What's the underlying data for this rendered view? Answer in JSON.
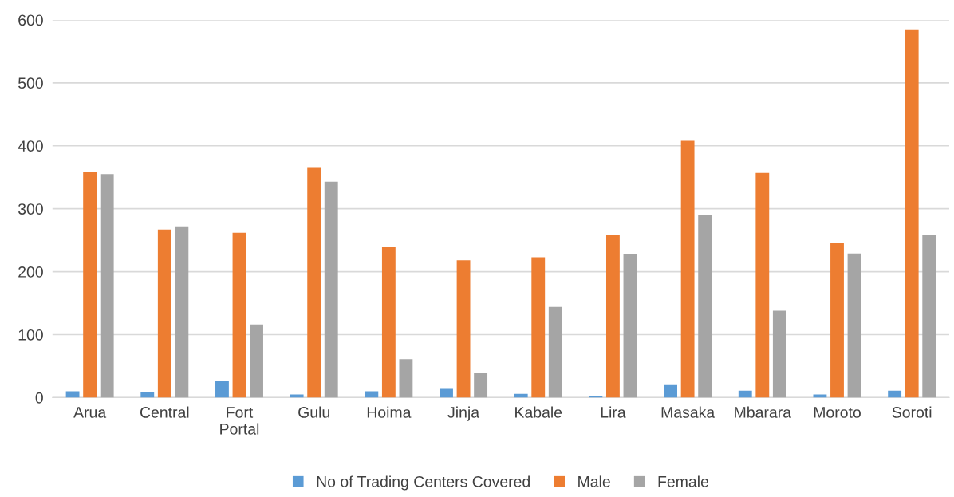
{
  "chart_data": {
    "type": "bar",
    "categories": [
      "Arua",
      "Central",
      "Fort\nPortal",
      "Gulu",
      "Hoima",
      "Jinja",
      "Kabale",
      "Lira",
      "Masaka",
      "Mbarara",
      "Moroto",
      "Soroti"
    ],
    "series": [
      {
        "name": "No of Trading Centers Covered",
        "color": "#5b9bd5",
        "values": [
          10,
          8,
          27,
          5,
          10,
          15,
          6,
          3,
          21,
          11,
          5,
          11
        ]
      },
      {
        "name": "Male",
        "color": "#ed7d31",
        "values": [
          359,
          267,
          262,
          366,
          240,
          218,
          223,
          258,
          408,
          357,
          246,
          585
        ]
      },
      {
        "name": "Female",
        "color": "#a5a5a5",
        "values": [
          355,
          272,
          116,
          343,
          61,
          39,
          144,
          228,
          290,
          138,
          229,
          258
        ]
      }
    ],
    "ylim": [
      0,
      600
    ],
    "yticks": [
      0,
      100,
      200,
      300,
      400,
      500,
      600
    ],
    "grid": "y",
    "legend": "bottom"
  }
}
